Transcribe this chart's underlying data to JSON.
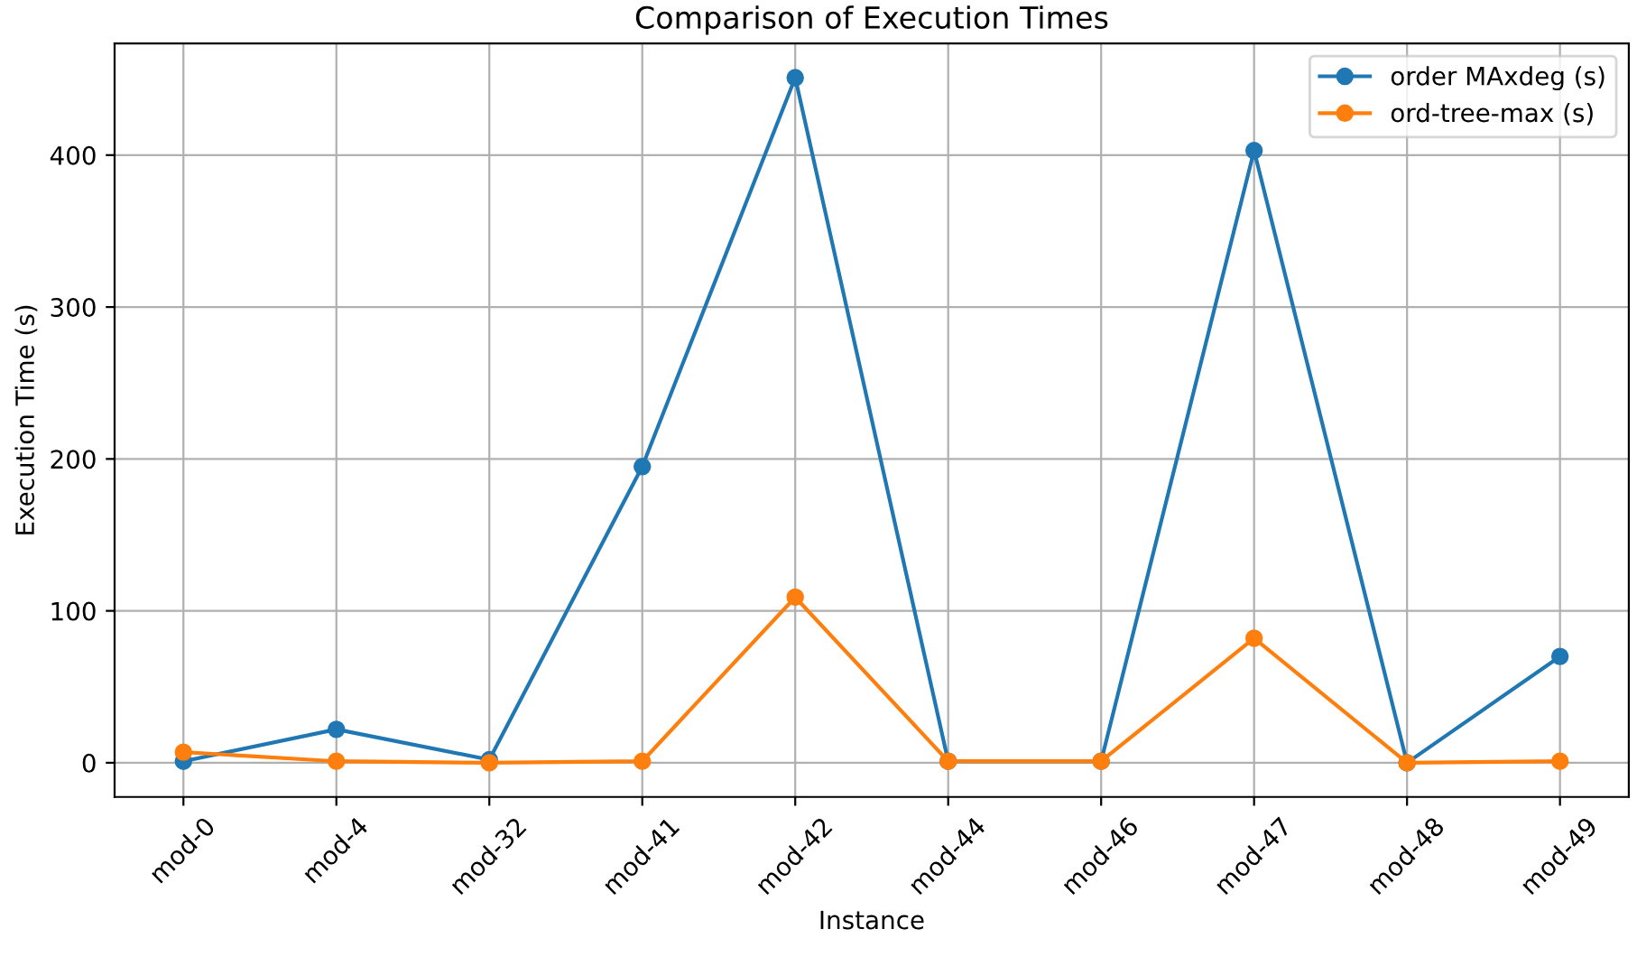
{
  "chart_data": {
    "type": "line",
    "title": "Comparison of Execution Times",
    "xlabel": "Instance",
    "ylabel": "Execution Time (s)",
    "categories": [
      "mod-0",
      "mod-4",
      "mod-32",
      "mod-41",
      "mod-42",
      "mod-44",
      "mod-46",
      "mod-47",
      "mod-48",
      "mod-49"
    ],
    "series": [
      {
        "name": "order MAxdeg (s)",
        "color": "#1f77b4",
        "values": [
          1,
          22,
          2,
          195,
          451,
          1,
          1,
          403,
          0,
          70
        ]
      },
      {
        "name": "ord-tree-max (s)",
        "color": "#ff7f0e",
        "values": [
          7,
          1,
          0,
          1,
          109,
          1,
          1,
          82,
          0,
          1
        ]
      }
    ],
    "ylim": [
      -22.5,
      473.5
    ],
    "yticks": [
      0,
      100,
      200,
      300,
      400
    ],
    "grid": true,
    "legend": "top right",
    "marker": "circle",
    "line_style": "solid"
  }
}
